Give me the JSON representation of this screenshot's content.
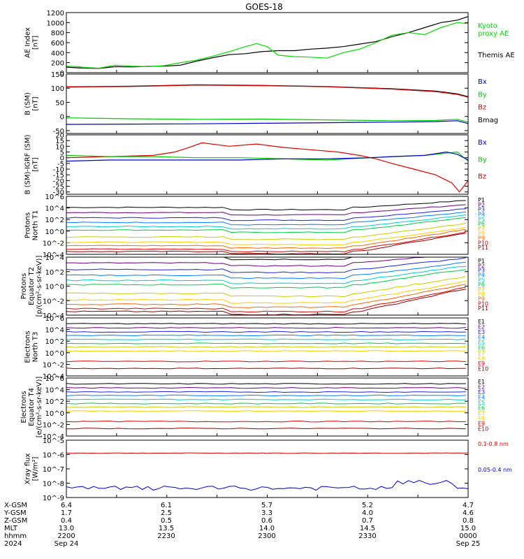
{
  "title": "GOES-18",
  "panels": [
    {
      "id": "ae",
      "ylabel": [
        "AE Index",
        "[nT]"
      ],
      "scale": "linear",
      "ylim": [
        0,
        1200
      ],
      "ticks": [
        "1200",
        "1000",
        "800",
        "600",
        "400",
        "200",
        "0"
      ],
      "tickvals": [
        1200,
        1000,
        800,
        600,
        400,
        200,
        0
      ],
      "legend": [
        {
          "text": "Kyoto",
          "color": "#00dd00"
        },
        {
          "text": "proxy AE",
          "color": "#00dd00"
        },
        {
          "text": "Themis AE",
          "color": "#000000"
        }
      ]
    },
    {
      "id": "bsm",
      "ylabel": [
        "B (SM)",
        "[nT]"
      ],
      "scale": "linear",
      "ylim": [
        -60,
        150
      ],
      "ticks": [
        "150",
        "100",
        "50",
        "0",
        "-50"
      ],
      "tickvals": [
        150,
        100,
        50,
        0,
        -50
      ],
      "legend": [
        {
          "text": "Bx",
          "color": "#0000cc"
        },
        {
          "text": "By",
          "color": "#00cc00"
        },
        {
          "text": "Bz",
          "color": "#dd0000"
        },
        {
          "text": "Bmag",
          "color": "#000000"
        }
      ]
    },
    {
      "id": "bigrf",
      "ylabel": [
        "B (SM)-IGRF (SM)",
        "[nT]"
      ],
      "scale": "linear",
      "ylim": [
        -32,
        20
      ],
      "ticks": [
        "20",
        "15",
        "10",
        "5",
        "0",
        "-5",
        "-10",
        "-15",
        "-20",
        "-25",
        "-30"
      ],
      "tickvals": [
        20,
        15,
        10,
        5,
        0,
        -5,
        -10,
        -15,
        -20,
        -25,
        -30
      ],
      "legend": [
        {
          "text": "Bx",
          "color": "#0000cc"
        },
        {
          "text": "By",
          "color": "#00cc00"
        },
        {
          "text": "Bz",
          "color": "#dd0000"
        }
      ]
    },
    {
      "id": "pnorth",
      "ylabel": [
        "Protons",
        "North T1"
      ],
      "scale": "log",
      "ylim": [
        -4,
        6
      ],
      "ticks": [
        "10^6",
        "10^4",
        "10^2",
        "10^0",
        "10^-2",
        "10^-4"
      ],
      "tickvals": [
        6,
        4,
        2,
        0,
        -2,
        -4
      ],
      "legend": [
        {
          "text": "P1",
          "color": "#000000"
        },
        {
          "text": "P2",
          "color": "#6a0080"
        },
        {
          "text": "P3",
          "color": "#2020dd"
        },
        {
          "text": "P4",
          "color": "#0080ff"
        },
        {
          "text": "P5",
          "color": "#00cccc"
        },
        {
          "text": "P6",
          "color": "#00cc44"
        },
        {
          "text": "P7",
          "color": "#cccc00"
        },
        {
          "text": "P8",
          "color": "#ffcc00"
        },
        {
          "text": "P9",
          "color": "#ff6600"
        },
        {
          "text": "P10",
          "color": "#dd0000"
        },
        {
          "text": "P11",
          "color": "#990000"
        }
      ]
    },
    {
      "id": "pequator",
      "ylabel": [
        "Protons",
        "Equator T2",
        "[p/(cm²-s-sr-keV)]"
      ],
      "scale": "log",
      "ylim": [
        -4,
        4
      ],
      "ticks": [
        "10^4",
        "10^2",
        "10^0",
        "10^-2",
        "10^-4"
      ],
      "tickvals": [
        4,
        2,
        0,
        -2,
        -4
      ],
      "legend": [
        {
          "text": "P1",
          "color": "#000000"
        },
        {
          "text": "P2",
          "color": "#6a0080"
        },
        {
          "text": "P3",
          "color": "#2020dd"
        },
        {
          "text": "P4",
          "color": "#0080ff"
        },
        {
          "text": "P5",
          "color": "#00cccc"
        },
        {
          "text": "P6",
          "color": "#00cc44"
        },
        {
          "text": "P7",
          "color": "#cccc00"
        },
        {
          "text": "P8",
          "color": "#ffcc00"
        },
        {
          "text": "P9",
          "color": "#ff6600"
        },
        {
          "text": "P10",
          "color": "#dd0000"
        },
        {
          "text": "P11",
          "color": "#990000"
        }
      ]
    },
    {
      "id": "enorth",
      "ylabel": [
        "Electrons",
        "North T3"
      ],
      "scale": "log",
      "ylim": [
        -4,
        6
      ],
      "ticks": [
        "10^6",
        "10^4",
        "10^2",
        "10^0",
        "10^-2",
        "10^-4"
      ],
      "tickvals": [
        6,
        4,
        2,
        0,
        -2,
        -4
      ],
      "legend": [
        {
          "text": "E1",
          "color": "#000000"
        },
        {
          "text": "E2",
          "color": "#6a0080"
        },
        {
          "text": "E3",
          "color": "#2020dd"
        },
        {
          "text": "E4",
          "color": "#0080ff"
        },
        {
          "text": "E5",
          "color": "#00cccc"
        },
        {
          "text": "E6",
          "color": "#00cc44"
        },
        {
          "text": "E7",
          "color": "#cccc00"
        },
        {
          "text": "E8",
          "color": "#ffcc00"
        },
        {
          "text": "E9",
          "color": "#dd0000"
        },
        {
          "text": "E10",
          "color": "#990000"
        }
      ]
    },
    {
      "id": "eequator",
      "ylabel": [
        "Electrons",
        "Equator T4",
        "[e/(cm²-s-sr-keV)]"
      ],
      "scale": "log",
      "ylim": [
        -4,
        6
      ],
      "ticks": [
        "10^6",
        "10^4",
        "10^2",
        "10^0",
        "10^-2",
        "10^-4"
      ],
      "tickvals": [
        6,
        4,
        2,
        0,
        -2,
        -4
      ],
      "legend": [
        {
          "text": "E1",
          "color": "#000000"
        },
        {
          "text": "E2",
          "color": "#6a0080"
        },
        {
          "text": "E3",
          "color": "#2020dd"
        },
        {
          "text": "E4",
          "color": "#0080ff"
        },
        {
          "text": "E5",
          "color": "#00cccc"
        },
        {
          "text": "E6",
          "color": "#00cc44"
        },
        {
          "text": "E7",
          "color": "#cccc00"
        },
        {
          "text": "E8",
          "color": "#ffcc00"
        },
        {
          "text": "E9",
          "color": "#dd0000"
        },
        {
          "text": "E10",
          "color": "#990000"
        }
      ]
    },
    {
      "id": "xray",
      "ylabel": [
        "Xray flux",
        "[W/m²]"
      ],
      "scale": "log",
      "ylim": [
        -9,
        -5
      ],
      "ticks": [
        "10^-5",
        "10^-6",
        "10^-7",
        "10^-8",
        "10^-9"
      ],
      "tickvals": [
        -5,
        -6,
        -7,
        -8,
        -9
      ],
      "legend": [
        {
          "text": "0.1-0.8 nm",
          "color": "#dd0000"
        },
        {
          "text": "0.05-0.4 nm",
          "color": "#0000cc"
        }
      ]
    }
  ],
  "xaxis": {
    "rows": [
      {
        "label": "X-GSM",
        "values": [
          "6.4",
          "6.1",
          "5.7",
          "5.2",
          "4.7"
        ]
      },
      {
        "label": "Y-GSM",
        "values": [
          "1.7",
          "2.5",
          "3.3",
          "4.0",
          "4.6"
        ]
      },
      {
        "label": "Z-GSM",
        "values": [
          "0.4",
          "0.5",
          "0.6",
          "0.7",
          "0.8"
        ]
      },
      {
        "label": "MLT",
        "values": [
          "13.0",
          "13.5",
          "14.0",
          "14.5",
          "15.0"
        ]
      },
      {
        "label": "hhmm",
        "values": [
          "2200",
          "2230",
          "2300",
          "2330",
          "0000"
        ]
      },
      {
        "label": "2024",
        "values": [
          "Sep 24",
          "",
          "",
          "",
          "Sep 25"
        ]
      }
    ]
  },
  "chart_data": {
    "type": "line",
    "title": "GOES-18",
    "x": [
      "2200",
      "2230",
      "2300",
      "2330",
      "0000"
    ],
    "series": [
      {
        "name": "Themis AE",
        "panel": "ae",
        "color": "#000000",
        "points": [
          [
            0,
            110
          ],
          [
            15,
            90
          ],
          [
            30,
            85
          ],
          [
            45,
            120
          ],
          [
            60,
            115
          ],
          [
            75,
            125
          ],
          [
            90,
            130
          ],
          [
            105,
            150
          ],
          [
            120,
            230
          ],
          [
            135,
            300
          ],
          [
            150,
            360
          ],
          [
            165,
            380
          ],
          [
            180,
            420
          ],
          [
            195,
            440
          ],
          [
            210,
            440
          ],
          [
            225,
            470
          ],
          [
            240,
            490
          ],
          [
            255,
            520
          ],
          [
            270,
            570
          ],
          [
            285,
            620
          ],
          [
            300,
            720
          ],
          [
            315,
            800
          ],
          [
            330,
            900
          ],
          [
            345,
            1000
          ],
          [
            360,
            1050
          ],
          [
            370,
            1120
          ]
        ]
      },
      {
        "name": "Kyoto proxy AE",
        "panel": "ae",
        "color": "#00dd00",
        "points": [
          [
            0,
            130
          ],
          [
            10,
            120
          ],
          [
            20,
            100
          ],
          [
            30,
            90
          ],
          [
            45,
            150
          ],
          [
            60,
            130
          ],
          [
            75,
            120
          ],
          [
            90,
            140
          ],
          [
            105,
            200
          ],
          [
            120,
            250
          ],
          [
            135,
            330
          ],
          [
            150,
            420
          ],
          [
            165,
            520
          ],
          [
            175,
            580
          ],
          [
            185,
            520
          ],
          [
            195,
            350
          ],
          [
            210,
            320
          ],
          [
            225,
            310
          ],
          [
            240,
            290
          ],
          [
            255,
            400
          ],
          [
            270,
            470
          ],
          [
            285,
            600
          ],
          [
            300,
            750
          ],
          [
            315,
            800
          ],
          [
            330,
            760
          ],
          [
            345,
            900
          ],
          [
            360,
            1000
          ],
          [
            370,
            980
          ]
        ]
      },
      {
        "name": "Bmag",
        "panel": "bsm",
        "color": "#000000",
        "points": [
          [
            0,
            105
          ],
          [
            60,
            107
          ],
          [
            120,
            112
          ],
          [
            180,
            110
          ],
          [
            240,
            106
          ],
          [
            300,
            98
          ],
          [
            340,
            90
          ],
          [
            360,
            80
          ],
          [
            370,
            70
          ]
        ]
      },
      {
        "name": "Bz",
        "panel": "bsm",
        "color": "#dd0000",
        "points": [
          [
            0,
            104
          ],
          [
            60,
            106
          ],
          [
            120,
            111
          ],
          [
            180,
            109
          ],
          [
            240,
            105
          ],
          [
            300,
            97
          ],
          [
            340,
            88
          ],
          [
            360,
            78
          ],
          [
            370,
            68
          ]
        ]
      },
      {
        "name": "By",
        "panel": "bsm",
        "color": "#00cc00",
        "points": [
          [
            0,
            -5
          ],
          [
            60,
            -8
          ],
          [
            120,
            -10
          ],
          [
            180,
            -9
          ],
          [
            240,
            -12
          ],
          [
            300,
            -15
          ],
          [
            340,
            -14
          ],
          [
            360,
            -10
          ],
          [
            370,
            -20
          ]
        ]
      },
      {
        "name": "Bx",
        "panel": "bsm",
        "color": "#0000cc",
        "points": [
          [
            0,
            -28
          ],
          [
            60,
            -27
          ],
          [
            120,
            -26
          ],
          [
            180,
            -24
          ],
          [
            240,
            -22
          ],
          [
            300,
            -20
          ],
          [
            340,
            -18
          ],
          [
            360,
            -15
          ],
          [
            370,
            -25
          ]
        ]
      },
      {
        "name": "Bz",
        "panel": "bigrf",
        "color": "#dd0000",
        "points": [
          [
            0,
            0
          ],
          [
            40,
            1
          ],
          [
            80,
            2
          ],
          [
            100,
            5
          ],
          [
            110,
            8
          ],
          [
            125,
            13
          ],
          [
            150,
            10
          ],
          [
            175,
            12
          ],
          [
            200,
            9
          ],
          [
            225,
            7
          ],
          [
            250,
            5
          ],
          [
            270,
            2
          ],
          [
            285,
            -1
          ],
          [
            300,
            -5
          ],
          [
            320,
            -10
          ],
          [
            340,
            -15
          ],
          [
            355,
            -22
          ],
          [
            362,
            -30
          ],
          [
            370,
            -20
          ]
        ]
      },
      {
        "name": "By",
        "panel": "bigrf",
        "color": "#00cc00",
        "points": [
          [
            0,
            2
          ],
          [
            40,
            1
          ],
          [
            80,
            1
          ],
          [
            120,
            0
          ],
          [
            160,
            0
          ],
          [
            200,
            -1
          ],
          [
            240,
            -2
          ],
          [
            280,
            0
          ],
          [
            300,
            1
          ],
          [
            330,
            2
          ],
          [
            350,
            4
          ],
          [
            360,
            5
          ],
          [
            370,
            -3
          ]
        ]
      },
      {
        "name": "Bx",
        "panel": "bigrf",
        "color": "#0000cc",
        "points": [
          [
            0,
            -3
          ],
          [
            40,
            -2
          ],
          [
            80,
            -2
          ],
          [
            120,
            -2
          ],
          [
            160,
            -2
          ],
          [
            200,
            -1
          ],
          [
            240,
            -1
          ],
          [
            280,
            0
          ],
          [
            300,
            1
          ],
          [
            330,
            2
          ],
          [
            350,
            5
          ],
          [
            360,
            3
          ],
          [
            370,
            -2
          ]
        ]
      }
    ]
  }
}
